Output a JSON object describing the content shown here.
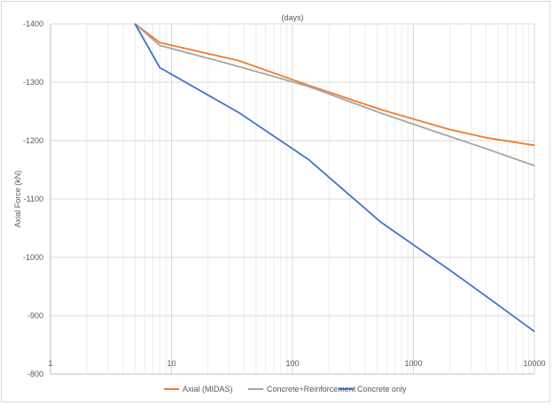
{
  "chart_data": {
    "type": "line",
    "title": "(days)",
    "xlabel": "",
    "ylabel": "Axial Force (kN)",
    "x_scale": "log",
    "xlim": [
      1,
      10000
    ],
    "ylim": [
      -800,
      -1400
    ],
    "y_reversed": true,
    "x_ticks": [
      "1",
      "10",
      "100",
      "1000",
      "10000"
    ],
    "y_ticks": [
      "-1400",
      "-1300",
      "-1200",
      "-1100",
      "-1000",
      "-900",
      "-800"
    ],
    "grid": {
      "major": true,
      "minor_x": true
    },
    "legend": "bottom",
    "series": [
      {
        "name": "Axial (MIDAS)",
        "color": "#ed7d31",
        "points": [
          [
            5,
            -1400
          ],
          [
            8,
            -1368
          ],
          [
            36,
            -1337
          ],
          [
            135,
            -1295
          ],
          [
            540,
            -1253
          ],
          [
            2000,
            -1219
          ],
          [
            4000,
            -1205
          ],
          [
            10000,
            -1192
          ]
        ]
      },
      {
        "name": "Concrete+Reinforcement",
        "color": "#a5a5a5",
        "points": [
          [
            5,
            -1400
          ],
          [
            8,
            -1363
          ],
          [
            36,
            -1327
          ],
          [
            135,
            -1293
          ],
          [
            540,
            -1247
          ],
          [
            2000,
            -1207
          ],
          [
            4000,
            -1186
          ],
          [
            10000,
            -1157
          ]
        ]
      },
      {
        "name": "Concrete only",
        "color": "#4472c4",
        "points": [
          [
            5,
            -1400
          ],
          [
            8,
            -1325
          ],
          [
            36,
            -1248
          ],
          [
            135,
            -1168
          ],
          [
            540,
            -1060
          ],
          [
            2000,
            -978
          ],
          [
            4000,
            -933
          ],
          [
            10000,
            -873
          ]
        ]
      }
    ]
  }
}
